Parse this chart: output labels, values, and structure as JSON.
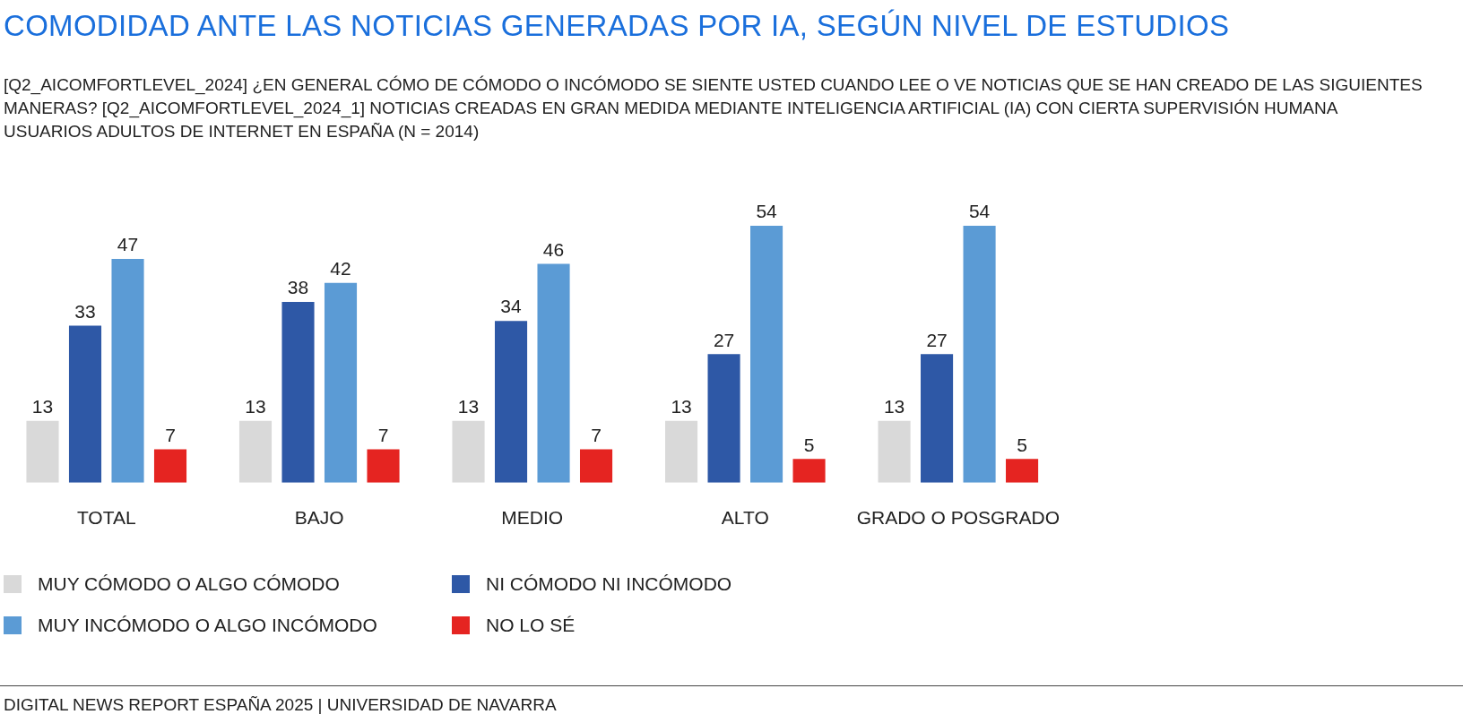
{
  "chart_data": {
    "type": "bar",
    "title": "COMODIDAD ANTE LAS NOTICIAS GENERADAS POR IA, SEGÚN NIVEL DE ESTUDIOS",
    "subtitle": "[Q2_AICOMFORTLEVEL_2024] ¿EN GENERAL CÓMO DE CÓMODO O INCÓMODO SE SIENTE USTED CUANDO LEE O VE NOTICIAS QUE SE HAN CREADO DE LAS SIGUIENTES MANERAS? [Q2_AICOMFORTLEVEL_2024_1]   NOTICIAS CREADAS EN GRAN MEDIDA MEDIANTE INTELIGENCIA ARTIFICIAL (IA) CON CIERTA SUPERVISIÓN HUMANA\nUSUARIOS ADULTOS DE INTERNET EN ESPAÑA (N = 2014)",
    "categories": [
      "TOTAL",
      "BAJO",
      "MEDIO",
      "ALTO",
      "GRADO O POSGRADO"
    ],
    "series": [
      {
        "name": "MUY CÓMODO O ALGO CÓMODO",
        "color": "#d9d9d9",
        "values": [
          13,
          13,
          13,
          13,
          13
        ]
      },
      {
        "name": "NI CÓMODO NI INCÓMODO",
        "color": "#2e58a6",
        "values": [
          33,
          38,
          34,
          27,
          27
        ]
      },
      {
        "name": "MUY INCÓMODO O ALGO INCÓMODO",
        "color": "#5b9bd5",
        "values": [
          47,
          42,
          46,
          54,
          54
        ]
      },
      {
        "name": "NO LO SÉ",
        "color": "#e52421",
        "values": [
          7,
          7,
          7,
          5,
          5
        ]
      }
    ],
    "data_labels": true,
    "grid": false,
    "legend": "bottom left",
    "annotations": [
      "DIGITAL NEWS REPORT ESPAÑA 2025 | UNIVERSIDAD DE NAVARRA"
    ]
  }
}
